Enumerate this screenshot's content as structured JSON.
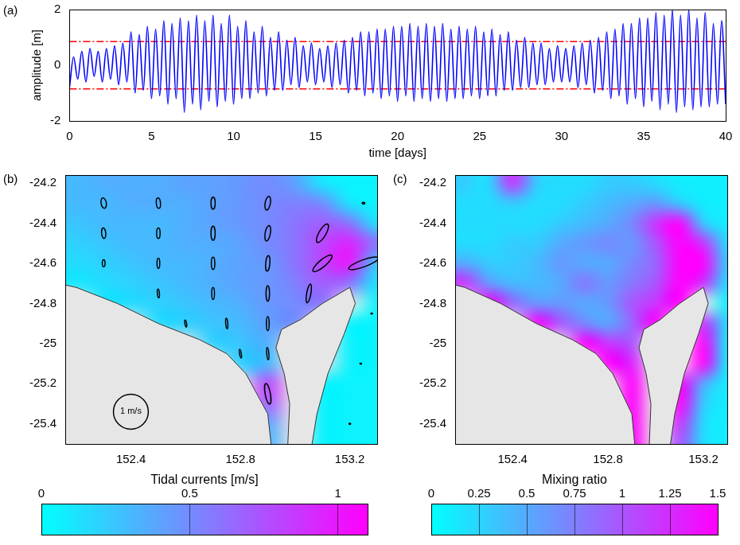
{
  "chart_data": [
    {
      "type": "line",
      "panel": "(a)",
      "xlabel": "time [days]",
      "ylabel": "amplitude [m]",
      "xlim": [
        0,
        40
      ],
      "xticks": [
        0,
        5,
        10,
        15,
        20,
        25,
        30,
        35,
        40
      ],
      "ylim": [
        -2,
        2
      ],
      "yticks": [
        -2,
        0,
        2
      ],
      "grid": false,
      "color": "#0000ff",
      "x": [
        0,
        0.25,
        0.5,
        0.75,
        1,
        1.25,
        1.5,
        1.75,
        2,
        2.25,
        2.5,
        2.75,
        3,
        3.25,
        3.5,
        3.75,
        4,
        4.25,
        4.5,
        4.75,
        5,
        5.25,
        5.5,
        5.75,
        6,
        6.25,
        6.5,
        6.75,
        7,
        7.25,
        7.5,
        7.75,
        8,
        8.25,
        8.5,
        8.75,
        9,
        9.25,
        9.5,
        9.75,
        10,
        10.25,
        10.5,
        10.75,
        11,
        11.25,
        11.5,
        11.75,
        12,
        12.25,
        12.5,
        12.75,
        13,
        13.25,
        13.5,
        13.75,
        14,
        14.25,
        14.5,
        14.75,
        15,
        15.25,
        15.5,
        15.75,
        16,
        16.25,
        16.5,
        16.75,
        17,
        17.25,
        17.5,
        17.75,
        18,
        18.25,
        18.5,
        18.75,
        19,
        19.25,
        19.5,
        19.75,
        20,
        20.25,
        20.5,
        20.75,
        21,
        21.25,
        21.5,
        21.75,
        22,
        22.25,
        22.5,
        22.75,
        23,
        23.25,
        23.5,
        23.75,
        24,
        24.25,
        24.5,
        24.75,
        25,
        25.25,
        25.5,
        25.75,
        26,
        26.25,
        26.5,
        26.75,
        27,
        27.25,
        27.5,
        27.75,
        28,
        28.25,
        28.5,
        28.75,
        29,
        29.25,
        29.5,
        29.75,
        30,
        30.25,
        30.5,
        30.75,
        31,
        31.25,
        31.5,
        31.75,
        32,
        32.25,
        32.5,
        32.75,
        33,
        33.25,
        33.5,
        33.75,
        34,
        34.25,
        34.5,
        34.75,
        35,
        35.25,
        35.5,
        35.75,
        36,
        36.25,
        36.5,
        36.75,
        37,
        37.25,
        37.5,
        37.75,
        38,
        38.25,
        38.5,
        38.75,
        39,
        39.25,
        39.5,
        39.75,
        40
      ],
      "values": [
        -0.8,
        0.3,
        -0.5,
        0.5,
        -0.6,
        0.6,
        -0.4,
        0.5,
        -0.6,
        0.6,
        -0.5,
        0.7,
        -0.7,
        0.8,
        -0.6,
        1.2,
        -1.0,
        1.1,
        -0.9,
        1.4,
        -1.2,
        1.3,
        -1.1,
        1.6,
        -1.4,
        1.5,
        -1.2,
        1.7,
        -1.7,
        1.6,
        -1.4,
        1.8,
        -1.6,
        1.6,
        -1.3,
        1.8,
        -1.5,
        1.5,
        -1.3,
        1.8,
        -1.4,
        1.4,
        -1.2,
        1.6,
        -1.2,
        1.2,
        -1.0,
        1.4,
        -1.1,
        1.0,
        -0.9,
        1.2,
        -0.9,
        0.9,
        -0.7,
        1.0,
        -0.8,
        0.7,
        -0.6,
        0.8,
        -0.7,
        0.6,
        -0.6,
        0.7,
        -0.8,
        0.8,
        -0.7,
        0.9,
        -1.0,
        1.0,
        -0.9,
        1.2,
        -1.1,
        1.2,
        -1.0,
        1.3,
        -1.2,
        1.3,
        -1.1,
        1.4,
        -1.3,
        1.4,
        -1.1,
        1.5,
        -1.3,
        1.4,
        -1.2,
        1.5,
        -1.3,
        1.4,
        -1.2,
        1.5,
        -1.3,
        1.3,
        -1.2,
        1.4,
        -1.2,
        1.3,
        -1.1,
        1.4,
        -1.2,
        1.2,
        -1.1,
        1.3,
        -1.1,
        1.1,
        -0.9,
        1.2,
        -0.9,
        0.9,
        -0.8,
        1.0,
        -0.8,
        0.8,
        -0.7,
        0.8,
        -0.7,
        0.6,
        -0.6,
        0.7,
        -0.6,
        0.6,
        -0.6,
        0.7,
        -0.8,
        0.8,
        -0.7,
        0.9,
        -1.0,
        1.0,
        -0.9,
        1.2,
        -1.2,
        1.3,
        -1.1,
        1.5,
        -1.4,
        1.5,
        -1.2,
        1.7,
        -1.5,
        1.7,
        -1.3,
        1.9,
        -1.6,
        1.8,
        -1.4,
        2.0,
        -1.7,
        1.8,
        -1.5,
        2.0,
        -1.6,
        1.7,
        -1.5,
        1.9,
        -1.5,
        1.5,
        -1.4,
        1.6,
        -1.4
      ],
      "reference_lines": {
        "values": [
          0.85,
          -0.85
        ],
        "color": "#ff0000",
        "line_style": "dashdot"
      }
    },
    {
      "type": "map",
      "panel": "(b)",
      "grid": false,
      "xlim": [
        152.16,
        153.3
      ],
      "xticks": [
        152.4,
        152.8,
        153.2
      ],
      "ylim": [
        -25.5,
        -24.16
      ],
      "yticks": [
        -24.2,
        -24.4,
        -24.6,
        -24.8,
        -25,
        -25.2,
        -25.4
      ],
      "cell_lon": [
        152.2,
        152.3,
        152.4,
        152.5,
        152.6,
        152.7,
        152.8,
        152.9,
        153.0,
        153.1,
        153.2,
        153.3
      ],
      "cell_lat": [
        -24.2,
        -24.3,
        -24.4,
        -24.5,
        -24.6,
        -24.7,
        -24.8,
        -24.9,
        -25.0,
        -25.1,
        -25.2,
        -25.3,
        -25.4,
        -25.5
      ],
      "cells": [
        [
          0.3,
          0.35,
          0.35,
          0.35,
          0.4,
          0.4,
          0.45,
          0.5,
          0.4,
          0.1,
          0.05,
          0.05
        ],
        [
          0.3,
          0.3,
          0.35,
          0.35,
          0.35,
          0.4,
          0.45,
          0.5,
          0.55,
          0.5,
          0.1,
          0.05
        ],
        [
          0.25,
          0.3,
          0.3,
          0.3,
          0.35,
          0.4,
          0.45,
          0.5,
          0.6,
          0.7,
          0.6,
          0.1
        ],
        [
          0.2,
          0.25,
          0.3,
          0.3,
          0.35,
          0.35,
          0.4,
          0.5,
          0.6,
          0.8,
          0.95,
          0.6
        ],
        [
          0.15,
          0.2,
          0.25,
          0.3,
          0.3,
          0.35,
          0.4,
          0.45,
          0.6,
          0.8,
          1.0,
          0.2
        ],
        [
          0.1,
          0.15,
          0.2,
          0.25,
          0.3,
          0.35,
          0.4,
          0.45,
          0.55,
          0.7,
          0.6,
          0.1
        ],
        [
          null,
          0.1,
          0.15,
          0.2,
          0.25,
          0.3,
          0.35,
          0.45,
          0.5,
          0.6,
          null,
          0.05
        ],
        [
          null,
          null,
          null,
          0.15,
          0.2,
          0.25,
          0.3,
          0.4,
          0.5,
          null,
          0.05,
          0.05
        ],
        [
          null,
          null,
          null,
          null,
          null,
          0.2,
          0.25,
          0.35,
          null,
          null,
          0.05,
          0.05
        ],
        [
          null,
          null,
          null,
          null,
          null,
          null,
          0.2,
          0.3,
          null,
          null,
          0.05,
          0.05
        ],
        [
          null,
          null,
          null,
          null,
          null,
          null,
          null,
          0.8,
          null,
          0.05,
          0.05,
          0.05
        ],
        [
          null,
          null,
          null,
          null,
          null,
          null,
          null,
          0.7,
          null,
          0.05,
          0.05,
          0.05
        ],
        [
          null,
          null,
          null,
          null,
          null,
          null,
          null,
          0.4,
          null,
          0.05,
          0.05,
          0.05
        ],
        [
          null,
          null,
          null,
          null,
          null,
          null,
          null,
          0.3,
          null,
          0.05,
          0.05,
          0.05
        ]
      ],
      "land": {
        "color": "#e6e6e6",
        "polygons": [
          [
            [
              152.1,
              -24.69
            ],
            [
              152.2,
              -24.72
            ],
            [
              152.35,
              -24.8
            ],
            [
              152.5,
              -24.9
            ],
            [
              152.65,
              -24.98
            ],
            [
              152.75,
              -25.05
            ],
            [
              152.82,
              -25.15
            ],
            [
              152.86,
              -25.25
            ],
            [
              152.9,
              -25.35
            ],
            [
              152.92,
              -25.6
            ],
            [
              152.1,
              -25.6
            ]
          ],
          [
            [
              153.2,
              -24.72
            ],
            [
              153.22,
              -24.8
            ],
            [
              153.18,
              -24.95
            ],
            [
              153.12,
              -25.15
            ],
            [
              153.08,
              -25.35
            ],
            [
              153.05,
              -25.6
            ],
            [
              152.97,
              -25.6
            ],
            [
              152.98,
              -25.3
            ],
            [
              152.96,
              -25.15
            ],
            [
              152.93,
              -25.02
            ],
            [
              152.95,
              -24.93
            ],
            [
              153.02,
              -24.88
            ],
            [
              153.1,
              -24.8
            ]
          ]
        ]
      },
      "ellipses": {
        "lon": [
          152.3,
          152.5,
          152.7,
          152.9,
          152.3,
          152.5,
          152.7,
          152.9,
          153.1,
          152.3,
          152.5,
          152.7,
          152.9,
          153.1,
          153.25,
          152.5,
          152.7,
          152.9,
          153.05,
          152.6,
          152.75,
          152.9,
          152.8,
          152.9,
          152.9,
          153.25,
          153.28,
          153.24,
          153.2
        ],
        "lat": [
          -24.3,
          -24.3,
          -24.3,
          -24.3,
          -24.45,
          -24.45,
          -24.45,
          -24.45,
          -24.45,
          -24.6,
          -24.6,
          -24.6,
          -24.6,
          -24.6,
          -24.6,
          -24.75,
          -24.75,
          -24.75,
          -24.75,
          -24.9,
          -24.9,
          -24.9,
          -25.05,
          -25.05,
          -25.25,
          -24.3,
          -24.85,
          -25.1,
          -25.4
        ],
        "major": [
          0.3,
          0.3,
          0.35,
          0.4,
          0.3,
          0.3,
          0.4,
          0.45,
          0.6,
          0.2,
          0.3,
          0.35,
          0.45,
          0.7,
          0.9,
          0.25,
          0.35,
          0.45,
          0.55,
          0.2,
          0.3,
          0.4,
          0.25,
          0.35,
          0.6,
          0.08,
          0.05,
          0.05,
          0.05
        ],
        "minor": [
          0.15,
          0.12,
          0.12,
          0.15,
          0.12,
          0.1,
          0.12,
          0.15,
          0.2,
          0.08,
          0.08,
          0.1,
          0.12,
          0.2,
          0.2,
          0.06,
          0.08,
          0.1,
          0.12,
          0.05,
          0.06,
          0.08,
          0.05,
          0.06,
          0.15,
          0.05,
          0.03,
          0.03,
          0.03
        ],
        "angle": [
          100,
          95,
          90,
          80,
          95,
          90,
          90,
          80,
          60,
          90,
          90,
          90,
          85,
          40,
          20,
          95,
          90,
          90,
          80,
          100,
          95,
          90,
          100,
          95,
          100,
          0,
          0,
          0,
          0
        ]
      },
      "ellipse_scale": {
        "value": 1,
        "label": "1 m/s"
      },
      "colorbar": {
        "label": "Tidal currents [m/s]",
        "range": [
          0,
          1.1
        ],
        "ticks": [
          0,
          0.5,
          1
        ],
        "colors": [
          "#00ffff",
          "#ff00ff"
        ]
      }
    },
    {
      "type": "map",
      "panel": "(c)",
      "grid": false,
      "xlim": [
        152.16,
        153.3
      ],
      "xticks": [
        152.4,
        152.8,
        153.2
      ],
      "ylim": [
        -25.5,
        -24.16
      ],
      "yticks": [
        -24.2,
        -24.4,
        -24.6,
        -24.8,
        -25,
        -25.2,
        -25.4
      ],
      "cell_lon": [
        152.2,
        152.3,
        152.4,
        152.5,
        152.6,
        152.7,
        152.8,
        152.9,
        153.0,
        153.1,
        153.2,
        153.3
      ],
      "cell_lat": [
        -24.2,
        -24.3,
        -24.4,
        -24.5,
        -24.6,
        -24.7,
        -24.8,
        -24.9,
        -25.0,
        -25.1,
        -25.2,
        -25.3,
        -25.4,
        -25.5
      ],
      "cells": [
        [
          0.3,
          0.2,
          1.2,
          0.3,
          0.2,
          0.2,
          0.3,
          0.3,
          0.2,
          0.1,
          0.1,
          0.1
        ],
        [
          0.2,
          0.2,
          0.3,
          0.2,
          0.2,
          0.3,
          0.4,
          0.5,
          0.6,
          0.3,
          0.1,
          0.1
        ],
        [
          0.2,
          0.2,
          0.2,
          0.2,
          0.3,
          0.4,
          0.5,
          0.7,
          1.2,
          1.5,
          0.3,
          0.1
        ],
        [
          0.2,
          0.2,
          0.3,
          0.3,
          0.5,
          0.6,
          0.7,
          0.6,
          1.0,
          1.5,
          1.2,
          0.2
        ],
        [
          0.5,
          0.3,
          0.3,
          0.4,
          0.6,
          0.5,
          0.5,
          0.7,
          0.9,
          1.5,
          1.5,
          0.3
        ],
        [
          1.2,
          0.6,
          0.4,
          0.4,
          0.5,
          0.8,
          0.6,
          0.8,
          1.0,
          1.5,
          1.2,
          0.2
        ],
        [
          null,
          1.5,
          0.9,
          0.6,
          0.6,
          0.5,
          0.6,
          1.0,
          1.2,
          1.5,
          null,
          0.1
        ],
        [
          null,
          null,
          null,
          1.5,
          1.0,
          0.7,
          0.5,
          0.9,
          1.5,
          null,
          1.2,
          0.2
        ],
        [
          null,
          null,
          null,
          null,
          null,
          1.5,
          1.2,
          1.0,
          null,
          null,
          1.5,
          0.1
        ],
        [
          null,
          null,
          null,
          null,
          null,
          null,
          1.5,
          1.3,
          null,
          null,
          1.5,
          0.1
        ],
        [
          null,
          null,
          null,
          null,
          null,
          null,
          null,
          1.5,
          null,
          1.5,
          0.5,
          0.1
        ],
        [
          null,
          null,
          null,
          null,
          null,
          null,
          null,
          1.5,
          null,
          1.5,
          0.3,
          0.1
        ],
        [
          null,
          null,
          null,
          null,
          null,
          null,
          null,
          1.5,
          null,
          1.2,
          0.2,
          0.1
        ],
        [
          null,
          null,
          null,
          null,
          null,
          null,
          null,
          1.5,
          null,
          1.0,
          0.2,
          0.1
        ]
      ],
      "land": {
        "color": "#e6e6e6",
        "polygons": [
          [
            [
              152.1,
              -24.69
            ],
            [
              152.2,
              -24.72
            ],
            [
              152.35,
              -24.8
            ],
            [
              152.5,
              -24.9
            ],
            [
              152.65,
              -24.98
            ],
            [
              152.75,
              -25.05
            ],
            [
              152.82,
              -25.15
            ],
            [
              152.86,
              -25.25
            ],
            [
              152.9,
              -25.35
            ],
            [
              152.92,
              -25.6
            ],
            [
              152.1,
              -25.6
            ]
          ],
          [
            [
              153.2,
              -24.72
            ],
            [
              153.22,
              -24.8
            ],
            [
              153.18,
              -24.95
            ],
            [
              153.12,
              -25.15
            ],
            [
              153.08,
              -25.35
            ],
            [
              153.05,
              -25.6
            ],
            [
              152.97,
              -25.6
            ],
            [
              152.98,
              -25.3
            ],
            [
              152.96,
              -25.15
            ],
            [
              152.93,
              -25.02
            ],
            [
              152.95,
              -24.93
            ],
            [
              153.02,
              -24.88
            ],
            [
              153.1,
              -24.8
            ]
          ]
        ]
      },
      "colorbar": {
        "label": "Mixing ratio",
        "range": [
          0,
          1.5
        ],
        "ticks": [
          0,
          0.25,
          0.5,
          0.75,
          1,
          1.25,
          1.5
        ],
        "colors": [
          "#00ffff",
          "#ff00ff"
        ]
      }
    }
  ]
}
